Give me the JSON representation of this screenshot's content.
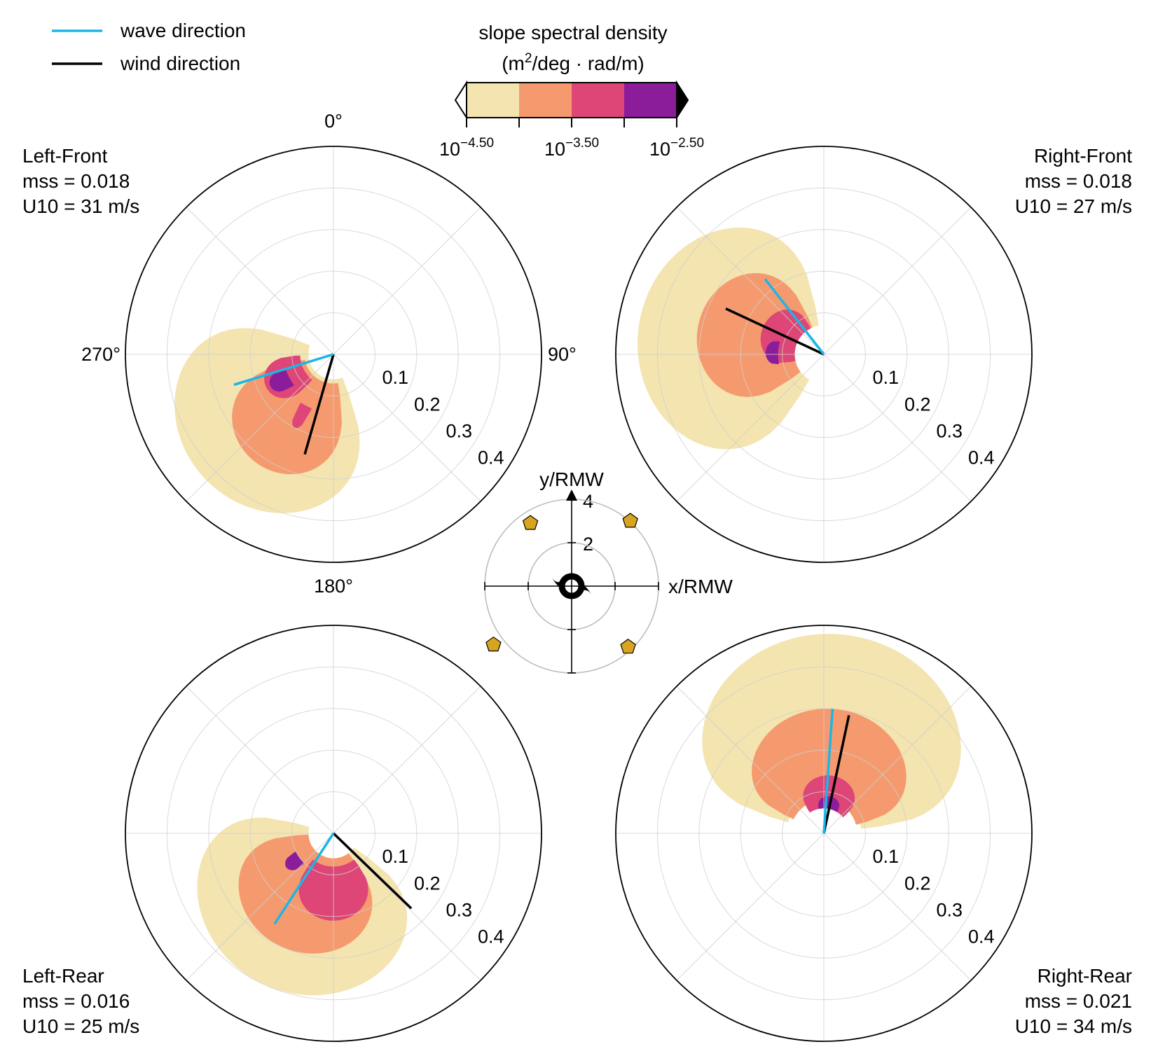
{
  "legend": {
    "wave_label": "wave direction",
    "wind_label": "wind direction",
    "wave_color": "#1ab6e8",
    "wind_color": "#000000",
    "placement": "top-left"
  },
  "colorbar": {
    "title_line1": "slope spectral density",
    "title_line2_prefix": "(m",
    "title_line2_sup": "2",
    "title_line2_suffix": "/deg · rad/m)",
    "ticks": [
      {
        "base": "10",
        "exp": "−4.50"
      },
      {
        "base": "10",
        "exp": "−3.50"
      },
      {
        "base": "10",
        "exp": "−2.50"
      }
    ],
    "level_log10": [
      -4.5,
      -4.0,
      -3.5,
      -3.0,
      -2.5
    ],
    "colors": [
      "#f3e4b0",
      "#f59a6e",
      "#dd4677",
      "#8c1d9a"
    ],
    "extend_min_color": "#ffffff",
    "extend_max_color": "#000000"
  },
  "polar_axes": {
    "angle_labels": {
      "n": "0°",
      "e": "90°",
      "s": "180°",
      "w": "270°"
    },
    "radial_ticks": [
      "0.1",
      "0.2",
      "0.3",
      "0.4"
    ],
    "rmax": 0.5,
    "grid": true
  },
  "chart_data": [
    {
      "type": "polar-contour",
      "quadrant": "Left-Front",
      "name": "Left-Front",
      "mss": "mss = 0.018",
      "u10": "U10 = 31 m/s",
      "wave_dir_deg": 253,
      "wave_len": 0.25,
      "wind_dir_deg": 196,
      "wind_len": 0.25,
      "blobs": [
        {
          "level": 1,
          "c": 225,
          "s": 66,
          "r0": 0.06,
          "r1": 0.43
        },
        {
          "level": 2,
          "c": 215,
          "s": 44,
          "r0": 0.07,
          "r1": 0.32
        },
        {
          "level": 3,
          "c": 244,
          "s": 24,
          "r0": 0.08,
          "r1": 0.18
        },
        {
          "level": 3,
          "c": 208,
          "s": 6,
          "r0": 0.14,
          "r1": 0.2
        },
        {
          "level": 4,
          "c": 243,
          "s": 11,
          "r0": 0.12,
          "r1": 0.17
        }
      ]
    },
    {
      "type": "polar-contour",
      "quadrant": "Right-Front",
      "name": "Right-Front",
      "mss": "mss = 0.018",
      "u10": "U10 = 27 m/s",
      "wave_dir_deg": 322,
      "wave_len": 0.23,
      "wind_dir_deg": 295,
      "wind_len": 0.26,
      "blobs": [
        {
          "level": 1,
          "c": 280,
          "s": 70,
          "r0": 0.07,
          "r1": 0.45
        },
        {
          "level": 2,
          "c": 285,
          "s": 52,
          "r0": 0.07,
          "r1": 0.31
        },
        {
          "level": 3,
          "c": 295,
          "s": 38,
          "r0": 0.07,
          "r1": 0.16
        },
        {
          "level": 4,
          "c": 272,
          "s": 14,
          "r0": 0.11,
          "r1": 0.14
        }
      ]
    },
    {
      "type": "polar-contour",
      "quadrant": "Left-Rear",
      "name": "Left-Rear",
      "mss": "mss = 0.016",
      "u10": "U10 = 25 m/s",
      "wave_dir_deg": 213,
      "wave_len": 0.26,
      "wind_dir_deg": 134,
      "wind_len": 0.26,
      "blobs": [
        {
          "level": 1,
          "c": 205,
          "s": 80,
          "r0": 0.06,
          "r1": 0.4
        },
        {
          "level": 2,
          "c": 205,
          "s": 62,
          "r0": 0.06,
          "r1": 0.3
        },
        {
          "level": 3,
          "c": 180,
          "s": 38,
          "r0": 0.08,
          "r1": 0.21
        },
        {
          "level": 4,
          "c": 234,
          "s": 10,
          "r0": 0.1,
          "r1": 0.14
        }
      ]
    },
    {
      "type": "polar-contour",
      "quadrant": "Right-Rear",
      "name": "Right-Rear",
      "mss": "mss = 0.021",
      "u10": "U10 = 34 m/s",
      "wave_dir_deg": 4,
      "wave_len": 0.3,
      "wind_dir_deg": 12,
      "wind_len": 0.29,
      "blobs": [
        {
          "level": 1,
          "c": 5,
          "s": 78,
          "r0": 0.09,
          "r1": 0.48
        },
        {
          "level": 2,
          "c": 5,
          "s": 70,
          "r0": 0.08,
          "r1": 0.3
        },
        {
          "level": 3,
          "c": 8,
          "s": 42,
          "r0": 0.06,
          "r1": 0.14
        },
        {
          "level": 4,
          "c": 10,
          "s": 22,
          "r0": 0.06,
          "r1": 0.09
        }
      ]
    }
  ],
  "inset": {
    "ylabel": "y/RMW",
    "xlabel": "x/RMW",
    "tick_labels": [
      "4",
      "2"
    ],
    "rings": [
      2,
      4
    ],
    "marker_color": "#d9a520",
    "marker_shape": "pentagon",
    "storm_symbol": "hurricane-icon",
    "buoys": [
      {
        "x": -1.9,
        "y": 2.9
      },
      {
        "x": 2.7,
        "y": 3.0
      },
      {
        "x": -3.6,
        "y": -2.7
      },
      {
        "x": 2.6,
        "y": -2.8
      }
    ]
  }
}
